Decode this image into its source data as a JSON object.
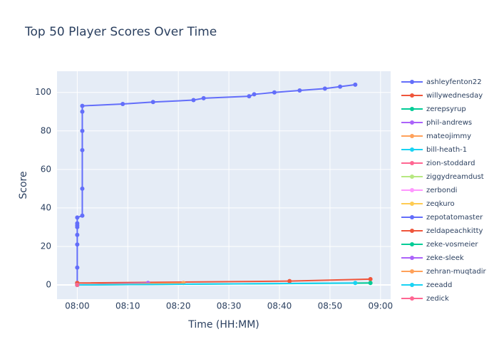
{
  "chart_data": {
    "type": "line",
    "title": "Top 50 Player Scores Over Time",
    "x_label": "Time (HH:MM)",
    "y_label": "Score",
    "xlim": [
      "07:56",
      "09:02"
    ],
    "xticks": [
      "08:00",
      "08:10",
      "08:20",
      "08:30",
      "08:40",
      "08:50",
      "09:00"
    ],
    "ylim": [
      -7.4,
      111
    ],
    "yticks": [
      0,
      20,
      40,
      60,
      80,
      100
    ],
    "grid": true,
    "series": [
      {
        "name": "ashleyfenton22",
        "color": "#636efa",
        "x": [
          "08:00",
          "08:00",
          "08:00",
          "08:00",
          "08:00",
          "08:00",
          "08:00",
          "08:00",
          "08:01",
          "08:01",
          "08:01",
          "08:01",
          "08:01",
          "08:01",
          "08:09",
          "08:15",
          "08:23",
          "08:25",
          "08:34",
          "08:35",
          "08:39",
          "08:44",
          "08:49",
          "08:52",
          "08:55"
        ],
        "values": [
          0,
          9,
          21,
          26,
          30,
          31,
          32,
          35,
          36,
          50,
          70,
          80,
          90,
          93,
          94,
          95,
          96,
          97,
          98,
          99,
          100,
          101,
          102,
          103,
          104
        ]
      },
      {
        "name": "willywednesday",
        "color": "#EF553B",
        "x": [
          "08:00",
          "08:42",
          "08:58"
        ],
        "values": [
          1,
          2,
          3
        ]
      },
      {
        "name": "zerepsyrup",
        "color": "#00cc96",
        "x": [
          "08:00",
          "08:58"
        ],
        "values": [
          0,
          1
        ]
      },
      {
        "name": "phil-andrews",
        "color": "#ab63fa",
        "x": [
          "08:00",
          "08:14"
        ],
        "values": [
          0,
          1
        ]
      },
      {
        "name": "mateojimmy",
        "color": "#FFA15A",
        "x": [
          "08:00",
          "08:21"
        ],
        "values": [
          0,
          1
        ]
      },
      {
        "name": "bill-heath-1",
        "color": "#19d3f3",
        "x": [
          "08:00",
          "08:55"
        ],
        "values": [
          0,
          1
        ]
      },
      {
        "name": "zion-stoddard",
        "color": "#FF6692",
        "x": [
          "08:00"
        ],
        "values": [
          1
        ]
      },
      {
        "name": "ziggydreamdust",
        "color": "#B6E880",
        "x": [
          "08:00"
        ],
        "values": [
          1
        ]
      },
      {
        "name": "zerbondi",
        "color": "#FF97FF",
        "x": [
          "08:00"
        ],
        "values": [
          1
        ]
      },
      {
        "name": "zeqkuro",
        "color": "#FECB52",
        "x": [
          "08:00"
        ],
        "values": [
          0
        ]
      },
      {
        "name": "zepotatomaster",
        "color": "#636efa",
        "x": [
          "08:00"
        ],
        "values": [
          1
        ]
      },
      {
        "name": "zeldapeachkitty",
        "color": "#EF553B",
        "x": [
          "08:00"
        ],
        "values": [
          1
        ]
      },
      {
        "name": "zeke-vosmeier",
        "color": "#00cc96",
        "x": [
          "08:00"
        ],
        "values": [
          0
        ]
      },
      {
        "name": "zeke-sleek",
        "color": "#ab63fa",
        "x": [
          "08:00"
        ],
        "values": [
          0
        ]
      },
      {
        "name": "zehran-muqtadir",
        "color": "#FFA15A",
        "x": [
          "08:00"
        ],
        "values": [
          0
        ]
      },
      {
        "name": "zeeadd",
        "color": "#19d3f3",
        "x": [
          "08:00"
        ],
        "values": [
          0
        ]
      },
      {
        "name": "zedick",
        "color": "#FF6692",
        "x": [
          "08:00"
        ],
        "values": [
          0
        ]
      }
    ]
  }
}
